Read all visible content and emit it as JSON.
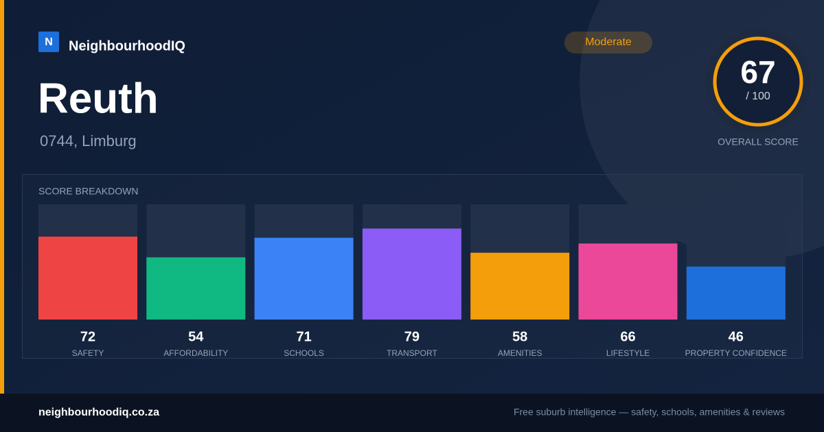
{
  "brand": "NeighbourhoodIQ",
  "logo_letter": "N",
  "title": "Reuth",
  "location": "0744, Limburg",
  "badge": "Moderate",
  "overall": {
    "score": "67",
    "out_of": "/ 100",
    "label": "OVERALL SCORE"
  },
  "chart_data": {
    "type": "bar",
    "title": "SCORE BREAKDOWN",
    "categories": [
      "SAFETY",
      "AFFORDABILITY",
      "SCHOOLS",
      "TRANSPORT",
      "AMENITIES",
      "LIFESTYLE",
      "PROPERTY CONFIDENCE"
    ],
    "values": [
      72,
      54,
      71,
      79,
      58,
      66,
      46
    ],
    "colors": [
      "#ef4444",
      "#10b981",
      "#3b82f6",
      "#8b5cf6",
      "#f59e0b",
      "#ec4899",
      "#1d6fdc"
    ],
    "ylim": [
      0,
      100
    ]
  },
  "footer": {
    "site": "neighbourhoodiq.co.za",
    "tagline": "Free suburb intelligence — safety, schools, amenities & reviews"
  }
}
